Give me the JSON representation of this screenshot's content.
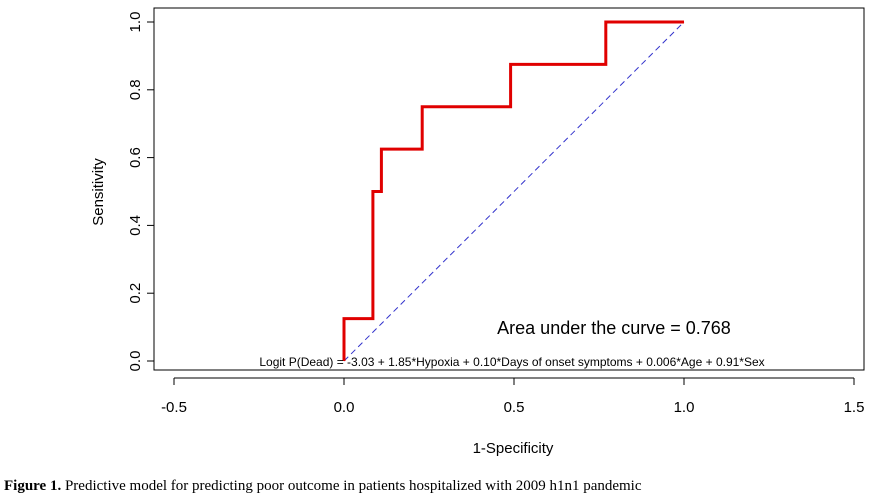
{
  "chart_data": {
    "type": "line",
    "xlabel": "1-Specificity",
    "ylabel": "Sensitivity",
    "xlim": [
      -0.5,
      1.5
    ],
    "ylim": [
      0.0,
      1.0
    ],
    "x_ticks": [
      -0.5,
      0.0,
      0.5,
      1.0,
      1.5
    ],
    "x_tick_labels": [
      "-0.5",
      "0.0",
      "0.5",
      "1.0",
      "1.5"
    ],
    "y_ticks": [
      0.0,
      0.2,
      0.4,
      0.6,
      0.8,
      1.0
    ],
    "y_tick_labels": [
      "0.0",
      "0.2",
      "0.4",
      "0.6",
      "0.8",
      "1.0"
    ],
    "grid": false,
    "series": [
      {
        "role": "roc-curve",
        "color": "#e00000",
        "x": [
          0.0,
          0.0,
          0.085,
          0.085,
          0.11,
          0.11,
          0.23,
          0.23,
          0.49,
          0.49,
          0.77,
          0.77,
          1.0
        ],
        "y": [
          0.0,
          0.125,
          0.125,
          0.5,
          0.5,
          0.625,
          0.625,
          0.75,
          0.75,
          0.875,
          0.875,
          1.0,
          1.0
        ]
      },
      {
        "role": "reference-diagonal",
        "color": "#3333cc",
        "style": "dashed",
        "x": [
          0.0,
          1.0
        ],
        "y": [
          0.0,
          1.0
        ]
      }
    ],
    "annotations": {
      "auc": "Area under the curve = 0.768",
      "formula": "Logit P(Dead) = -3.03 + 1.85*Hypoxia + 0.10*Days of onset symptoms + 0.006*Age + 0.91*Sex"
    }
  },
  "caption": {
    "label": "Figure 1.",
    "text": " Predictive model for predicting poor outcome in patients hospitalized with 2009 h1n1 pandemic"
  }
}
